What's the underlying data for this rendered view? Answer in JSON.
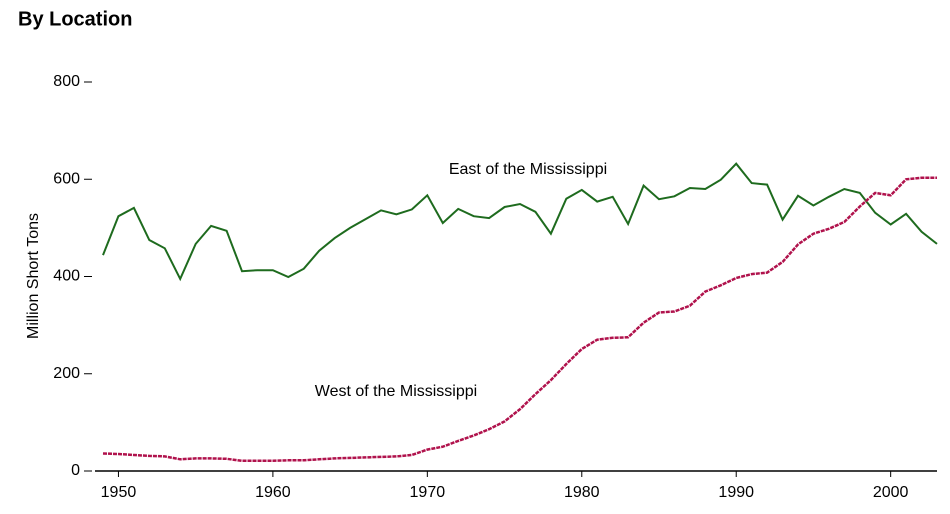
{
  "chart_data": {
    "type": "line",
    "title": "By Location",
    "ylabel": "Million Short Tons",
    "x": [
      1949,
      1950,
      1951,
      1952,
      1953,
      1954,
      1955,
      1956,
      1957,
      1958,
      1959,
      1960,
      1961,
      1962,
      1963,
      1964,
      1965,
      1966,
      1967,
      1968,
      1969,
      1970,
      1971,
      1972,
      1973,
      1974,
      1975,
      1976,
      1977,
      1978,
      1979,
      1980,
      1981,
      1982,
      1983,
      1984,
      1985,
      1986,
      1987,
      1988,
      1989,
      1990,
      1991,
      1992,
      1993,
      1994,
      1995,
      1996,
      1997,
      1998,
      1999,
      2000,
      2001,
      2002,
      2003
    ],
    "series": [
      {
        "name": "East of the Mississippi",
        "color": "#1e6b1e",
        "values": [
          444,
          524,
          541,
          475,
          458,
          395,
          467,
          504,
          494,
          411,
          413,
          413,
          399,
          416,
          453,
          479,
          500,
          518,
          536,
          528,
          538,
          567,
          510,
          539,
          524,
          520,
          543,
          549,
          533,
          488,
          560,
          578,
          554,
          564,
          508,
          587,
          559,
          565,
          582,
          580,
          599,
          632,
          592,
          589,
          517,
          566,
          546,
          564,
          580,
          572,
          531,
          507,
          529,
          492,
          467
        ]
      },
      {
        "name": "West of the Mississippi",
        "color": "#b0124c",
        "values": [
          36,
          35,
          33,
          31,
          30,
          24,
          26,
          26,
          25,
          21,
          21,
          21,
          22,
          22,
          24,
          26,
          27,
          28,
          29,
          30,
          33,
          44,
          50,
          62,
          73,
          86,
          102,
          127,
          158,
          187,
          220,
          251,
          270,
          274,
          275,
          305,
          326,
          328,
          340,
          369,
          382,
          397,
          405,
          408,
          430,
          466,
          488,
          498,
          512,
          544,
          572,
          567,
          600,
          603,
          603
        ]
      }
    ],
    "xlim": [
      1949,
      2003
    ],
    "xticks": [
      1950,
      1960,
      1970,
      1980,
      1990,
      2000
    ],
    "ylim": [
      0,
      800
    ],
    "yticks": [
      0,
      200,
      400,
      600,
      800
    ]
  }
}
